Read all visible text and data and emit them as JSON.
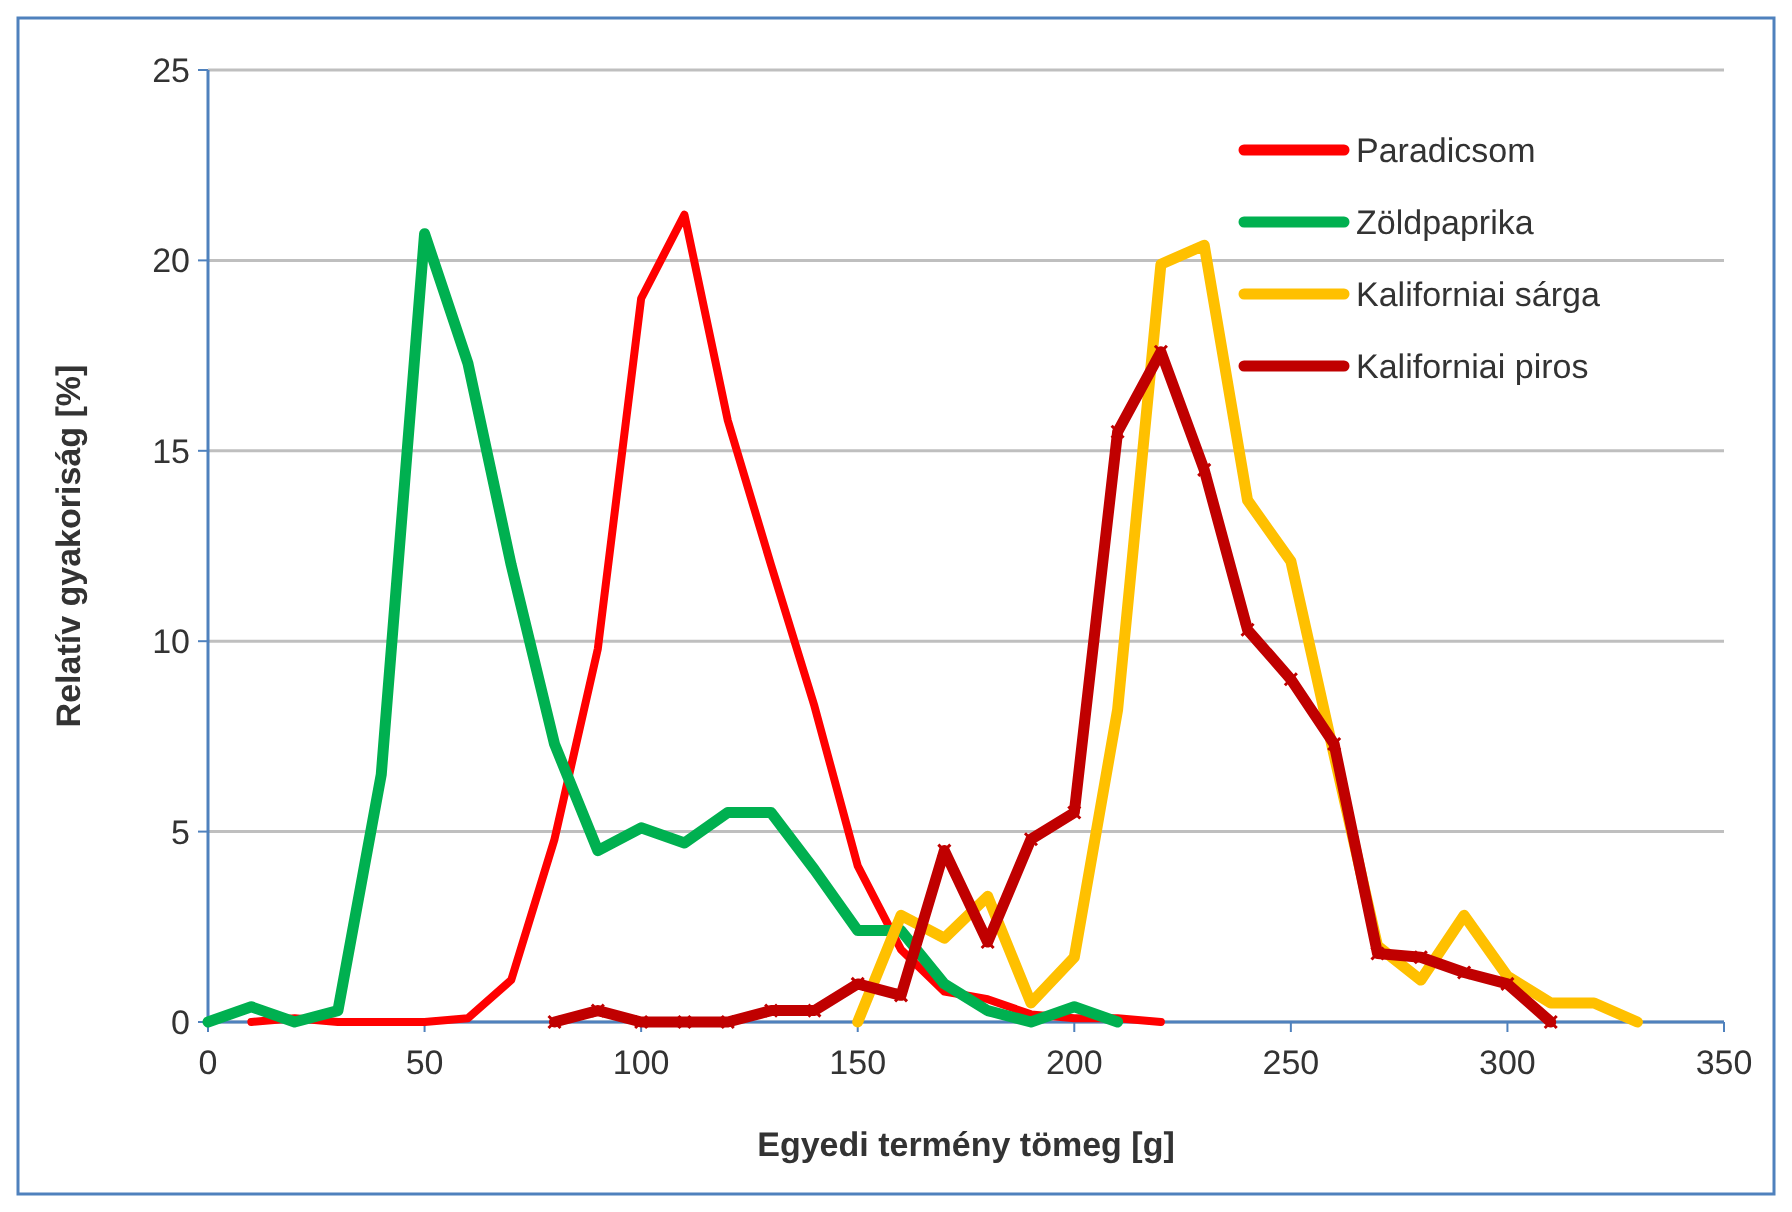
{
  "chart_data": {
    "type": "line",
    "xlabel": "Egyedi termény tömeg [g]",
    "ylabel": "Relatív gyakoriság [%]",
    "xlim": [
      0,
      350
    ],
    "xticks": [
      0,
      50,
      100,
      150,
      200,
      250,
      300,
      350
    ],
    "ylim": [
      0,
      25
    ],
    "yticks": [
      0,
      5,
      10,
      15,
      20,
      25
    ],
    "grid": "y",
    "legend": "top right",
    "line_style": "solid",
    "series": [
      {
        "name": "Paradicsom",
        "color": "#ff0000",
        "marker": "none",
        "x": [
          10,
          20,
          30,
          40,
          50,
          60,
          70,
          80,
          90,
          100,
          110,
          120,
          130,
          140,
          150,
          160,
          170,
          180,
          190,
          200,
          210,
          220
        ],
        "values": [
          0,
          0.1,
          0,
          0,
          0,
          0.1,
          1.1,
          4.8,
          9.8,
          19,
          21.2,
          15.8,
          12,
          8.3,
          4.1,
          1.9,
          0.8,
          0.6,
          0.2,
          0.1,
          0.1,
          0
        ]
      },
      {
        "name": "Zöldpaprika",
        "color": "#00b050",
        "marker": "none",
        "x": [
          0,
          10,
          20,
          30,
          40,
          50,
          60,
          70,
          80,
          90,
          100,
          110,
          120,
          130,
          140,
          150,
          160,
          170,
          180,
          190,
          200,
          210
        ],
        "values": [
          0,
          0.4,
          0,
          0.3,
          6.5,
          20.7,
          17.3,
          12,
          7.3,
          4.5,
          5.1,
          4.7,
          5.5,
          5.5,
          4,
          2.4,
          2.4,
          1,
          0.3,
          0,
          0.4,
          0
        ]
      },
      {
        "name": "Kaliforniai sárga",
        "color": "#ffc000",
        "marker": "none",
        "x": [
          150,
          160,
          170,
          180,
          190,
          200,
          210,
          220,
          230,
          240,
          250,
          260,
          270,
          280,
          290,
          300,
          310,
          320,
          330
        ],
        "values": [
          0,
          2.8,
          2.2,
          3.3,
          0.5,
          1.7,
          8.2,
          19.9,
          20.4,
          13.7,
          12.1,
          7,
          2,
          1.1,
          2.8,
          1.2,
          0.5,
          0.5,
          0
        ]
      },
      {
        "name": "Kaliforniai piros",
        "color": "#c00000",
        "marker": "cross",
        "x": [
          80,
          90,
          100,
          110,
          120,
          130,
          140,
          150,
          160,
          170,
          180,
          190,
          200,
          210,
          220,
          230,
          240,
          250,
          260,
          270,
          280,
          290,
          300,
          310
        ],
        "values": [
          0,
          0.3,
          0,
          0,
          0,
          0.3,
          0.3,
          1,
          0.7,
          4.5,
          2.1,
          4.8,
          5.5,
          15.5,
          17.6,
          14.5,
          10.3,
          9,
          7.3,
          1.8,
          1.7,
          1.3,
          1,
          0
        ]
      }
    ]
  }
}
